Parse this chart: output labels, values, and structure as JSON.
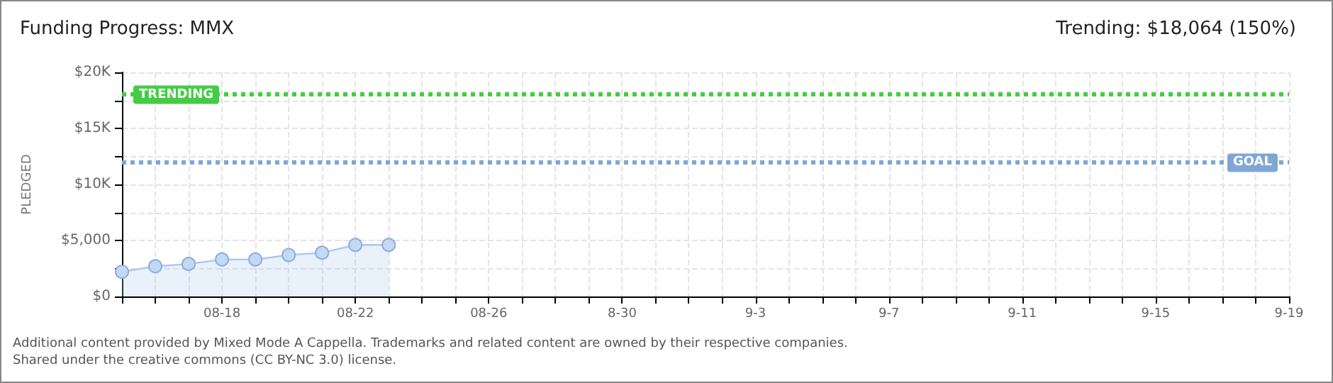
{
  "chart_data": {
    "type": "area",
    "title": "Funding Progress: MMX",
    "subtitle": "Trending: $18,064 (150%)",
    "ylabel": "PLEDGED",
    "categories": [
      null,
      null,
      null,
      "08-18",
      null,
      null,
      null,
      "08-22",
      null,
      null,
      null,
      "08-26",
      null,
      null,
      null,
      "8-30",
      null,
      null,
      null,
      "9-3",
      null,
      null,
      null,
      "9-7",
      null,
      null,
      null,
      "9-11",
      null,
      null,
      null,
      "9-15",
      null,
      null,
      null,
      "9-19"
    ],
    "series": [
      {
        "color": "#a8c8ef",
        "values": [
          2200,
          2700,
          2900,
          3300,
          3300,
          3700,
          3900,
          4600,
          4600,
          null,
          null,
          null,
          null,
          null,
          null,
          null,
          null,
          null,
          null,
          null,
          null,
          null,
          null,
          null,
          null,
          null,
          null,
          null,
          null,
          null,
          null,
          null,
          null,
          null,
          null,
          null
        ]
      }
    ],
    "ylim": [
      0,
      20000
    ],
    "yticks": [
      {
        "value": 0,
        "label": "$0"
      },
      {
        "value": 2500,
        "label": null
      },
      {
        "value": 5000,
        "label": "$5,000"
      },
      {
        "value": 7500,
        "label": null
      },
      {
        "value": 10000,
        "label": "$10K"
      },
      {
        "value": 12500,
        "label": null
      },
      {
        "value": 15000,
        "label": "$15K"
      },
      {
        "value": 17500,
        "label": null
      },
      {
        "value": 20000,
        "label": "$20K"
      }
    ],
    "ref_lines": [
      {
        "axis": "y",
        "value": 18064,
        "label": "TRENDING",
        "color": "#44cc44",
        "line_style": "dotted"
      },
      {
        "axis": "y",
        "value": 12000,
        "label": "GOAL",
        "color": "#7fa6d6",
        "line_style": "dotted"
      }
    ],
    "annotations": [
      "Additional content provided by Mixed Mode A Cappella. Trademarks and related content are owned by their respective companies.",
      "Shared under the creative commons (CC BY-NC 3.0) license."
    ],
    "grid": true,
    "marker": "circle",
    "line_style": "solid"
  }
}
